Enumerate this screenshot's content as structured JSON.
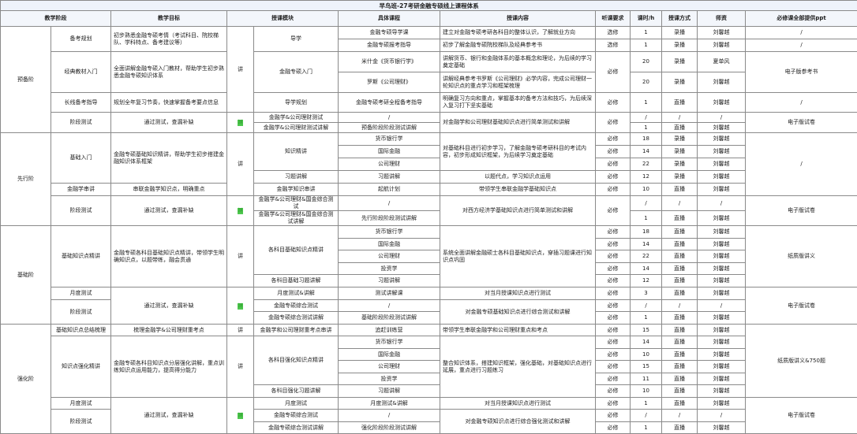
{
  "title": "早鸟班-27考研金融专硕线上课程体系",
  "headers": [
    {
      "t": "教学阶段",
      "c": 2
    },
    {
      "t": "教学目标"
    },
    {
      "t": "授课模块",
      "c": 2
    },
    {
      "t": "具体课程"
    },
    {
      "t": "授课内容"
    },
    {
      "t": "听课要求"
    },
    {
      "t": "课时/h"
    },
    {
      "t": "授课方式"
    },
    {
      "t": "师资"
    },
    {
      "t": "必修课全部提供ppt"
    }
  ],
  "colors": {
    "test_badge": "#4fc84f",
    "header_bg": "#f3f6fb",
    "title_bg": "#eef3fb"
  },
  "rows": [
    [
      {
        "t": "预备阶",
        "r": 7
      },
      {
        "t": "备考规划",
        "r": 2
      },
      {
        "t": "初步熟悉金融专硕考情（考试科目、院校梯队、学科特点、备考建议等）",
        "r": 2,
        "l": true
      },
      {
        "t": "讲",
        "r": 5
      },
      {
        "t": "导学",
        "r": 2
      },
      {
        "t": "金融专硕导学课"
      },
      {
        "t": "建立对金融专硕考研各科目的整体认识，了解就业方向",
        "l": true
      },
      {
        "t": "选修"
      },
      {
        "t": "1"
      },
      {
        "t": "录播"
      },
      {
        "t": "刘馨越"
      },
      {
        "t": "/"
      }
    ],
    [
      {
        "t": "金融专硕报考指导"
      },
      {
        "t": "初步了解金融专硕院校梯队及经典参考书",
        "l": true
      },
      {
        "t": "选修"
      },
      {
        "t": "1"
      },
      {
        "t": "录播"
      },
      {
        "t": "刘馨越"
      },
      {
        "t": "/"
      }
    ],
    [
      {
        "t": "经典教材入门",
        "r": 2
      },
      {
        "t": "全面讲解金融专硕入门教材，帮助学生初步熟悉金融专硕知识体系",
        "r": 2,
        "l": true
      },
      {
        "t": "金融专硕入门",
        "r": 2
      },
      {
        "t": "米什金《货币银行学》"
      },
      {
        "t": "讲解货币、银行和金融体系的基本概念和理论，为后续的学习奠定基础",
        "l": true
      },
      {
        "t": "必修",
        "r": 2
      },
      {
        "t": "20"
      },
      {
        "t": "录播"
      },
      {
        "t": "夏单风"
      },
      {
        "t": "电子版参考书",
        "r": 2
      }
    ],
    [
      {
        "t": "罗斯《公司理财》"
      },
      {
        "t": "讲解经典参考书罗斯《公司理财》必学内容，完成公司理财一轮知识点的重点学习和框架梳理",
        "l": true
      },
      {
        "t": "20"
      },
      {
        "t": "录播"
      },
      {
        "t": "刘馨越"
      }
    ],
    [
      {
        "t": "长线备考指导"
      },
      {
        "t": "规划全年复习节奏，快速掌握备考要点信息",
        "l": true
      },
      {
        "t": "导学规划"
      },
      {
        "t": "金融专硕考研全程备考指导"
      },
      {
        "t": "明确复习方向和重点，掌握基本的备考方法和技巧，为后续深入复习打下坚实基础",
        "l": true
      },
      {
        "t": "必修"
      },
      {
        "t": "1"
      },
      {
        "t": "直播"
      },
      {
        "t": "刘馨越"
      },
      {
        "t": "/"
      }
    ],
    [
      {
        "t": "阶段测试",
        "r": 2
      },
      {
        "t": "通过测试，查漏补缺",
        "r": 2
      },
      {
        "t": "测",
        "r": 2,
        "g": true
      },
      {
        "t": "金融学&公司理财测试"
      },
      {
        "t": "/"
      },
      {
        "t": "对金融学和公司理财基础知识点进行简单测试和讲解",
        "r": 2,
        "l": true
      },
      {
        "t": "必修",
        "r": 2
      },
      {
        "t": "/"
      },
      {
        "t": "/"
      },
      {
        "t": "/"
      },
      {
        "t": "电子版试卷",
        "r": 2
      }
    ],
    [
      {
        "t": "金融学&公司理财测试讲解"
      },
      {
        "t": "预备阶段阶段测试讲解"
      },
      {
        "t": "1"
      },
      {
        "t": "直播"
      },
      {
        "t": "刘馨越"
      }
    ],
    [
      {
        "t": "先行阶",
        "r": 7
      },
      {
        "t": "基础入门",
        "r": 4
      },
      {
        "t": "金融专硕基础知识精讲，帮助学生初步搭建金融知识体系框架",
        "r": 4,
        "l": true
      },
      {
        "t": "讲",
        "r": 5
      },
      {
        "t": "知识精讲",
        "r": 3
      },
      {
        "t": "货币银行学"
      },
      {
        "t": "对基础科目进行初步学习，了解金融专硕考研科目的考试内容，初步形成知识框架，为后续学习奠定基础",
        "r": 3,
        "l": true
      },
      {
        "t": "必修"
      },
      {
        "t": "18"
      },
      {
        "t": "录播"
      },
      {
        "t": "刘馨越"
      },
      {
        "t": "/",
        "r": 5
      }
    ],
    [
      {
        "t": "国际金融"
      },
      {
        "t": "必修"
      },
      {
        "t": "14"
      },
      {
        "t": "录播"
      },
      {
        "t": "刘馨越"
      }
    ],
    [
      {
        "t": "公司理财"
      },
      {
        "t": "必修"
      },
      {
        "t": "22"
      },
      {
        "t": "录播"
      },
      {
        "t": "刘馨越"
      }
    ],
    [
      {
        "t": "习题讲解"
      },
      {
        "t": "习题讲解"
      },
      {
        "t": "以题代点，学习知识点运用"
      },
      {
        "t": "必修"
      },
      {
        "t": "12"
      },
      {
        "t": "录播"
      },
      {
        "t": "刘馨越"
      }
    ],
    [
      {
        "t": "金融学串讲"
      },
      {
        "t": "串联金融学知识点，明确重点"
      },
      {
        "t": "金融学知识串讲"
      },
      {
        "t": "起航计划"
      },
      {
        "t": "带领学生串联金融学基础知识点"
      },
      {
        "t": "必修"
      },
      {
        "t": "10"
      },
      {
        "t": "直播"
      },
      {
        "t": "刘馨越"
      }
    ],
    [
      {
        "t": "阶段测试",
        "r": 2
      },
      {
        "t": "通过测试，查漏补缺",
        "r": 2
      },
      {
        "t": "测",
        "r": 2,
        "g": true
      },
      {
        "t": "金融学&公司理财&国金综合测试"
      },
      {
        "t": "/"
      },
      {
        "t": "对西方经济学基础知识点进行简单测试和讲解",
        "r": 2
      },
      {
        "t": "必修",
        "r": 2
      },
      {
        "t": "/"
      },
      {
        "t": "/"
      },
      {
        "t": "/"
      },
      {
        "t": "电子版试卷",
        "r": 2
      }
    ],
    [
      {
        "t": "金融学&公司理财&国金综合测试讲解"
      },
      {
        "t": "先行阶段阶段测试讲解"
      },
      {
        "t": "1"
      },
      {
        "t": "直播"
      },
      {
        "t": "刘馨越"
      }
    ],
    [
      {
        "t": "基础阶",
        "r": 8
      },
      {
        "t": "基础知识点精讲",
        "r": 5
      },
      {
        "t": "金融专硕各科目基础知识点精讲，带领学生明确知识点，以题带练，融会贯通",
        "r": 5,
        "l": true
      },
      {
        "t": "讲",
        "r": 5
      },
      {
        "t": "各科目基础知识点精讲",
        "r": 4
      },
      {
        "t": "货币银行学"
      },
      {
        "t": "系统全面讲解金融硕士各科目基础知识点，穿插习题课进行知识点巩固",
        "r": 5,
        "l": true
      },
      {
        "t": "必修"
      },
      {
        "t": "18"
      },
      {
        "t": "直播"
      },
      {
        "t": "刘馨越"
      },
      {
        "t": "纸质版讲义",
        "r": 5
      }
    ],
    [
      {
        "t": "国际金融"
      },
      {
        "t": "必修"
      },
      {
        "t": "14"
      },
      {
        "t": "直播"
      },
      {
        "t": "刘馨越"
      }
    ],
    [
      {
        "t": "公司理财"
      },
      {
        "t": "必修"
      },
      {
        "t": "22"
      },
      {
        "t": "直播"
      },
      {
        "t": "刘馨越"
      }
    ],
    [
      {
        "t": "投资学"
      },
      {
        "t": "必修"
      },
      {
        "t": "14"
      },
      {
        "t": "直播"
      },
      {
        "t": "刘馨越"
      }
    ],
    [
      {
        "t": "各科目基础习题讲解"
      },
      {
        "t": "习题讲解"
      },
      {
        "t": "必修"
      },
      {
        "t": "12"
      },
      {
        "t": "直播"
      },
      {
        "t": "刘馨越"
      }
    ],
    [
      {
        "t": "月度测试"
      },
      {
        "t": "通过测试，查漏补缺",
        "r": 3
      },
      {
        "t": "测",
        "r": 3,
        "g": true
      },
      {
        "t": "月度测试&讲解"
      },
      {
        "t": "测试讲解课"
      },
      {
        "t": "对当月授课知识点进行测试"
      },
      {
        "t": "必修"
      },
      {
        "t": "3"
      },
      {
        "t": "直播"
      },
      {
        "t": "刘馨越"
      },
      {
        "t": "电子版试卷",
        "r": 3
      }
    ],
    [
      {
        "t": "阶段测试",
        "r": 2
      },
      {
        "t": "金融专硕综合测试"
      },
      {
        "t": "/"
      },
      {
        "t": "对金融专硕基础知识点进行综合测试和讲解",
        "r": 2
      },
      {
        "t": "必修"
      },
      {
        "t": "/"
      },
      {
        "t": "/"
      },
      {
        "t": "/"
      }
    ],
    [
      {
        "t": "金融专硕综合测试讲解"
      },
      {
        "t": "基础阶段阶段测试讲解"
      },
      {
        "t": "必修"
      },
      {
        "t": "1"
      },
      {
        "t": "直播"
      },
      {
        "t": "刘馨越"
      }
    ],
    [
      {
        "t": "强化阶",
        "r": 9
      },
      {
        "t": "基础知识点总结梳理"
      },
      {
        "t": "梳理金融学&公司理财重考点"
      },
      {
        "t": "讲"
      },
      {
        "t": "金融学和公司理财重考点串讲"
      },
      {
        "t": "追赶训练营"
      },
      {
        "t": "带领学生串联金融学和公司理财重点和考点",
        "l": true
      },
      {
        "t": "必修"
      },
      {
        "t": "15"
      },
      {
        "t": "直播"
      },
      {
        "t": "刘馨越"
      },
      {
        "t": "纸质版讲义&750题",
        "r": 6
      }
    ],
    [
      {
        "t": "知识点强化精讲",
        "r": 5
      },
      {
        "t": "金融专硕各科目知识点分层强化讲解，重点训练知识点运用能力，提高得分能力",
        "r": 5,
        "l": true
      },
      {
        "t": "讲",
        "r": 5
      },
      {
        "t": "各科目强化知识点精讲",
        "r": 4
      },
      {
        "t": "货币银行学"
      },
      {
        "t": "整合知识体系，搭建知识框架，强化基础，对基础知识点进行延展，重点进行习题练习",
        "r": 5,
        "l": true
      },
      {
        "t": "必修"
      },
      {
        "t": "14"
      },
      {
        "t": "直播"
      },
      {
        "t": "刘馨越"
      }
    ],
    [
      {
        "t": "国际金融"
      },
      {
        "t": "必修"
      },
      {
        "t": "10"
      },
      {
        "t": "直播"
      },
      {
        "t": "刘馨越"
      }
    ],
    [
      {
        "t": "公司理财"
      },
      {
        "t": "必修"
      },
      {
        "t": "15"
      },
      {
        "t": "直播"
      },
      {
        "t": "刘馨越"
      }
    ],
    [
      {
        "t": "投资学"
      },
      {
        "t": "必修"
      },
      {
        "t": "11"
      },
      {
        "t": "直播"
      },
      {
        "t": "刘馨越"
      }
    ],
    [
      {
        "t": "各科目强化习题讲解"
      },
      {
        "t": "习题讲解"
      },
      {
        "t": "必修"
      },
      {
        "t": "10"
      },
      {
        "t": "直播"
      },
      {
        "t": "刘馨越"
      }
    ],
    [
      {
        "t": "月度测试"
      },
      {
        "t": "通过测试，查漏补缺",
        "r": 3
      },
      {
        "t": "测",
        "r": 3,
        "g": true
      },
      {
        "t": "月度测试"
      },
      {
        "t": "月度测试&讲解"
      },
      {
        "t": "对当月授课知识点进行测试"
      },
      {
        "t": "必修"
      },
      {
        "t": "1"
      },
      {
        "t": "直播"
      },
      {
        "t": "刘馨越"
      },
      {
        "t": "电子版试卷",
        "r": 3
      }
    ],
    [
      {
        "t": "阶段测试",
        "r": 2
      },
      {
        "t": "金融专硕综合测试"
      },
      {
        "t": "/"
      },
      {
        "t": "对金融专硕知识点进行综合强化测试和讲解",
        "r": 2
      },
      {
        "t": "必修"
      },
      {
        "t": "/"
      },
      {
        "t": "/"
      },
      {
        "t": "/"
      }
    ],
    [
      {
        "t": "金融专硕综合测试讲解"
      },
      {
        "t": "强化阶段阶段测试讲解"
      },
      {
        "t": "必修"
      },
      {
        "t": "1"
      },
      {
        "t": "直播"
      },
      {
        "t": "刘馨越"
      }
    ]
  ]
}
